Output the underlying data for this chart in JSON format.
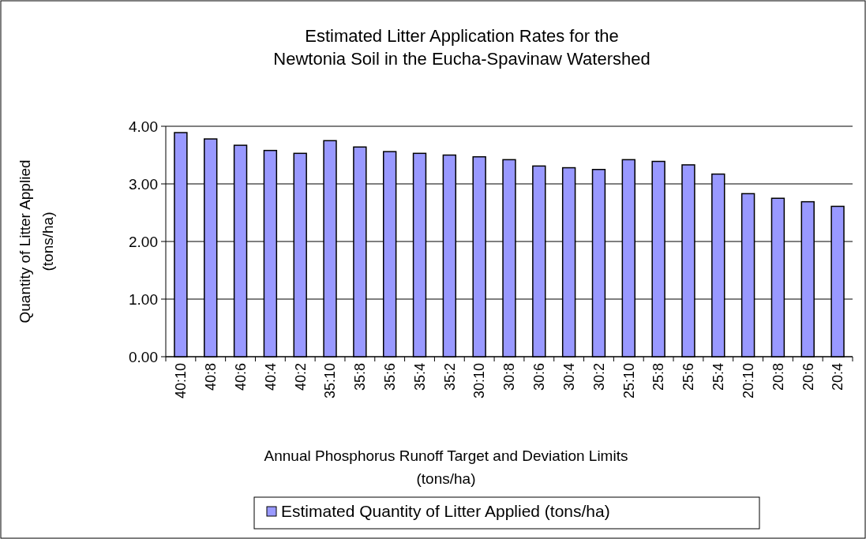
{
  "chart_data": {
    "type": "bar",
    "title": "Estimated Litter Application Rates for the\nNewtonia Soil in the Eucha-Spavinaw Watershed",
    "xlabel": "Annual Phosphorus Runoff Target and Deviation Limits\n(tons/ha)",
    "ylabel": "Quantity of Litter Applied\n(tons/ha)",
    "categories": [
      "40:10",
      "40:8",
      "40:6",
      "40:4",
      "40:2",
      "35:10",
      "35:8",
      "35:6",
      "35:4",
      "35:2",
      "30:10",
      "30:8",
      "30:6",
      "30:4",
      "30:2",
      "25:10",
      "25:8",
      "25:6",
      "25:4",
      "20:10",
      "20:8",
      "20:6",
      "20:4"
    ],
    "series": [
      {
        "name": "Estimated Quantity of Litter Applied (tons/ha)",
        "color": "#9999ff",
        "values": [
          3.89,
          3.78,
          3.67,
          3.58,
          3.53,
          3.75,
          3.64,
          3.56,
          3.53,
          3.5,
          3.47,
          3.42,
          3.31,
          3.28,
          3.25,
          3.42,
          3.39,
          3.33,
          3.17,
          2.83,
          2.75,
          2.69,
          2.61
        ]
      }
    ],
    "ylim": [
      0,
      4
    ],
    "yticks": [
      {
        "value": 0,
        "label": "0.00"
      },
      {
        "value": 1,
        "label": "1.00"
      },
      {
        "value": 2,
        "label": "2.00"
      },
      {
        "value": 3,
        "label": "3.00"
      },
      {
        "value": 4,
        "label": "4.00"
      }
    ],
    "grid": "y",
    "legend": "bottom"
  }
}
